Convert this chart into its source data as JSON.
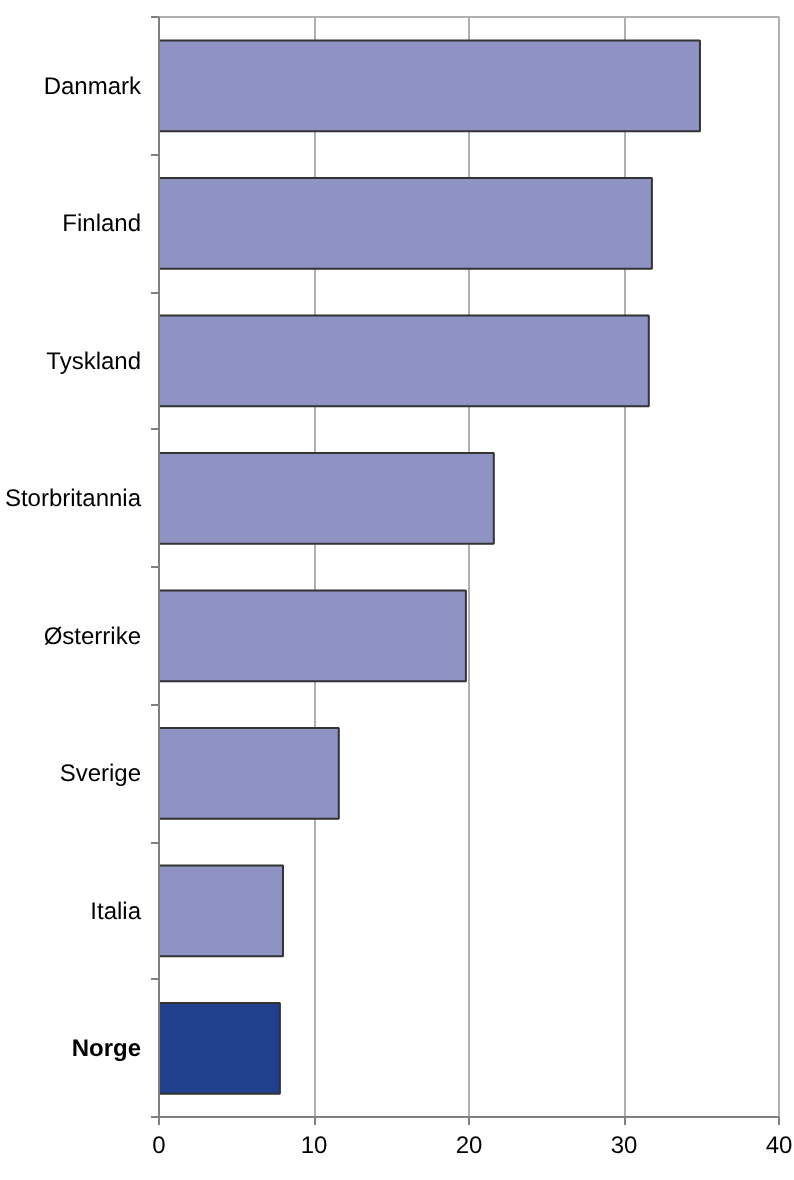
{
  "chart_data": {
    "type": "bar",
    "orientation": "horizontal",
    "categories": [
      "Danmark",
      "Finland",
      "Tyskland",
      "Storbritannia",
      "Østerrike",
      "Sverige",
      "Italia",
      "Norge"
    ],
    "values": [
      34.9,
      31.8,
      31.6,
      21.6,
      19.8,
      11.6,
      8.0,
      7.8
    ],
    "colors": [
      "#8f93c4",
      "#8f93c4",
      "#8f93c4",
      "#8f93c4",
      "#8f93c4",
      "#8f93c4",
      "#8f93c4",
      "#203f8c"
    ],
    "xlim": [
      0,
      40
    ],
    "xticks": [
      0,
      10,
      20,
      30,
      40
    ],
    "grid": "x"
  }
}
